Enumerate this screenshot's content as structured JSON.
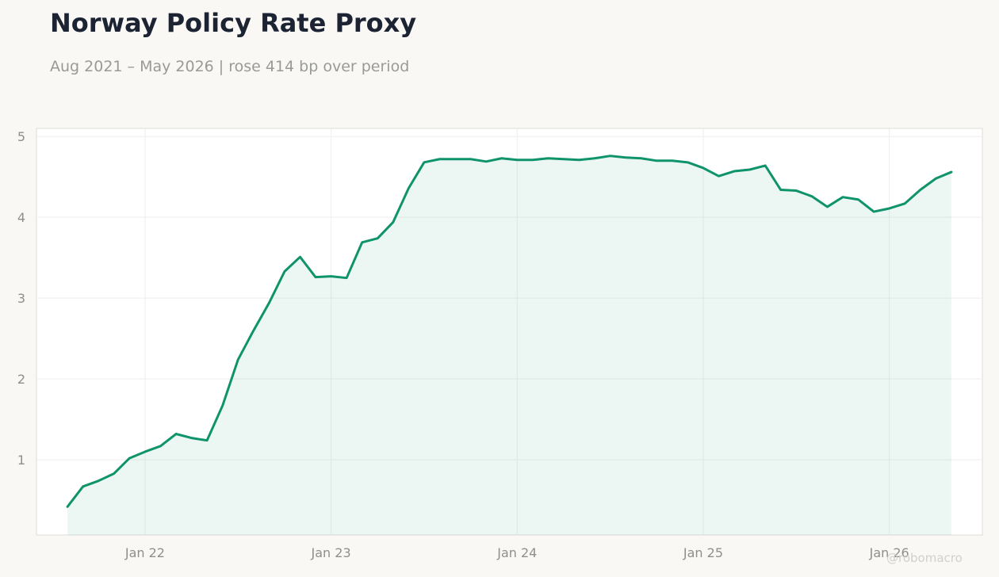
{
  "title": "Norway Policy Rate Proxy",
  "subtitle": "Aug 2021 – May 2026 | rose 414 bp over period",
  "watermark": "@robomacro",
  "colors": {
    "line": "#0e936a",
    "fill": "#0e936a",
    "background": "#f9f8f5",
    "plot_background": "#ffffff"
  },
  "chart_data": {
    "type": "area",
    "title": "Norway Policy Rate Proxy",
    "xlabel": "",
    "ylabel": "",
    "x_ticks": [
      "Jan 22",
      "Jan 23",
      "Jan 24",
      "Jan 25",
      "Jan 26"
    ],
    "y_ticks": [
      1,
      2,
      3,
      4,
      5
    ],
    "ylim": [
      0.07,
      5.1
    ],
    "xlim": [
      "2021-06",
      "2026-07"
    ],
    "grid": true,
    "legend": "none",
    "series": [
      {
        "x": [
          "2021-08",
          "2021-09",
          "2021-10",
          "2021-11",
          "2021-12",
          "2022-01",
          "2022-02",
          "2022-03",
          "2022-04",
          "2022-05",
          "2022-06",
          "2022-07",
          "2022-08",
          "2022-09",
          "2022-10",
          "2022-11",
          "2022-12",
          "2023-01",
          "2023-02",
          "2023-03",
          "2023-04",
          "2023-05",
          "2023-06",
          "2023-07",
          "2023-08",
          "2023-09",
          "2023-10",
          "2023-11",
          "2023-12",
          "2024-01",
          "2024-02",
          "2024-03",
          "2024-04",
          "2024-05",
          "2024-06",
          "2024-07",
          "2024-08",
          "2024-09",
          "2024-10",
          "2024-11",
          "2024-12",
          "2025-01",
          "2025-02",
          "2025-03",
          "2025-04",
          "2025-05",
          "2025-06",
          "2025-07",
          "2025-08",
          "2025-09",
          "2025-10",
          "2025-11",
          "2025-12",
          "2026-01",
          "2026-02",
          "2026-03",
          "2026-04",
          "2026-05"
        ],
        "values": [
          0.42,
          0.67,
          0.74,
          0.83,
          1.02,
          1.1,
          1.17,
          1.32,
          1.27,
          1.24,
          1.67,
          2.24,
          2.6,
          2.94,
          3.33,
          3.51,
          3.26,
          3.27,
          3.25,
          3.69,
          3.74,
          3.94,
          4.36,
          4.68,
          4.72,
          4.72,
          4.72,
          4.69,
          4.73,
          4.71,
          4.71,
          4.73,
          4.72,
          4.71,
          4.73,
          4.76,
          4.74,
          4.73,
          4.7,
          4.7,
          4.68,
          4.61,
          4.51,
          4.57,
          4.59,
          4.64,
          4.34,
          4.33,
          4.26,
          4.13,
          4.25,
          4.22,
          4.07,
          4.11,
          4.17,
          4.34,
          4.48,
          4.56
        ]
      }
    ]
  }
}
